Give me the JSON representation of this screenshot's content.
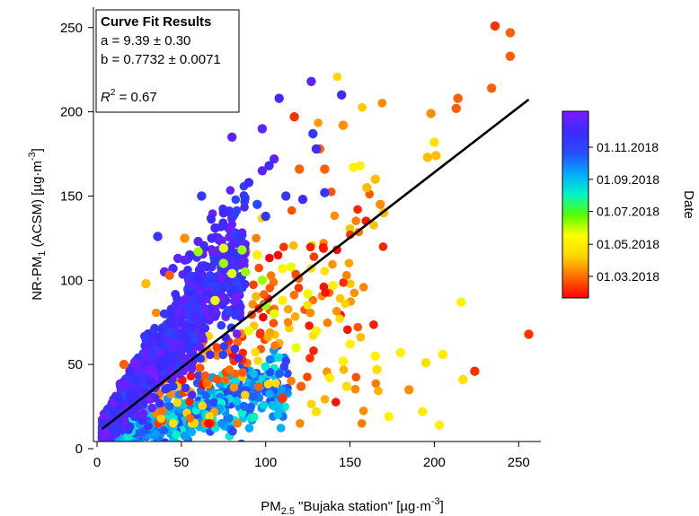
{
  "chart_data": {
    "type": "scatter",
    "xlabel": {
      "pre": "PM",
      "sub": "2.5",
      "mid": " \"Bujaka station\" [µg·m",
      "sup": "-3",
      "post": "]"
    },
    "ylabel": {
      "pre": "NR-PM",
      "sub": "1",
      "mid": " (ACSM) [µg·m",
      "sup": "-3",
      "post": "]"
    },
    "xlim": [
      0,
      260
    ],
    "ylim": [
      0,
      260
    ],
    "xticks": [
      0,
      50,
      100,
      150,
      200,
      250
    ],
    "yticks": [
      0,
      50,
      100,
      150,
      200,
      250
    ],
    "grid": false,
    "fit": {
      "box_title": "Curve Fit Results",
      "a_text": "a = 9.39 ± 0.30",
      "b_text": "b = 0.7732 ± 0.0071",
      "r2_label": "R",
      "r2_sup": "2",
      "r2_value": " = 0.67",
      "a": 9.39,
      "b": 0.7732,
      "line_x": [
        3,
        256
      ]
    },
    "colorbar": {
      "label": "Date",
      "ticks": [
        "01.03.2018",
        "01.05.2018",
        "01.07.2018",
        "01.09.2018",
        "01.11.2018"
      ],
      "tick_positions": [
        0.115,
        0.335,
        0.56,
        0.78,
        1.0
      ],
      "colors": [
        "#ff0000",
        "#ff6a00",
        "#ffd400",
        "#ffff00",
        "#55ff00",
        "#00f5c8",
        "#00aaff",
        "#2a4bff",
        "#3a2bff",
        "#7a1cff"
      ]
    },
    "cloud_seed": 20180101,
    "series": [
      {
        "x": [
          236,
          245,
          245,
          234,
          256,
          214,
          213,
          198,
          201,
          196,
          200,
          195,
          216,
          224,
          203,
          217,
          173,
          166,
          180,
          205,
          193,
          185,
          165,
          146
        ],
        "y": [
          251,
          247,
          233,
          214,
          68,
          208,
          202,
          199,
          174,
          173,
          182,
          51,
          87,
          46,
          14,
          41,
          19,
          47,
          57,
          56,
          22,
          35,
          55,
          52
        ],
        "c": [
          0.05,
          0.1,
          0.1,
          0.1,
          0.05,
          0.1,
          0.1,
          0.15,
          0.2,
          0.2,
          0.25,
          0.25,
          0.3,
          0.05,
          0.3,
          0.25,
          0.3,
          0.25,
          0.3,
          0.28,
          0.28,
          0.15,
          0.3,
          0.3
        ]
      },
      {
        "x": [
          127,
          108,
          145,
          117,
          146,
          132,
          156,
          152,
          165,
          160,
          168,
          170,
          135,
          122,
          130,
          98,
          128,
          135,
          120
        ],
        "y": [
          218,
          208,
          210,
          197,
          192,
          178,
          168,
          167,
          160,
          155,
          145,
          140,
          152,
          148,
          178,
          190,
          187,
          166,
          166
        ],
        "c": [
          0.95,
          0.9,
          0.9,
          0.05,
          0.15,
          0.1,
          0.3,
          0.3,
          0.2,
          0.2,
          0.15,
          0.2,
          0.85,
          0.9,
          0.9,
          0.95,
          0.85,
          0.1,
          0.1
        ]
      },
      {
        "x": [
          80,
          105,
          102,
          98,
          90,
          95,
          112,
          100,
          75,
          62,
          70,
          68,
          85,
          60,
          55,
          52,
          65,
          48,
          45,
          40
        ],
        "y": [
          185,
          172,
          168,
          165,
          158,
          145,
          150,
          138,
          140,
          150,
          131,
          125,
          125,
          123,
          115,
          112,
          108,
          113,
          107,
          105
        ],
        "c": [
          0.95,
          0.95,
          0.9,
          0.95,
          0.9,
          0.8,
          0.85,
          0.85,
          0.9,
          0.85,
          0.9,
          0.9,
          0.85,
          0.95,
          0.9,
          0.95,
          0.9,
          0.95,
          0.9,
          0.95
        ]
      },
      {
        "x": [
          115,
          95,
          98,
          110,
          125,
          75,
          88,
          130,
          118,
          60,
          75,
          80,
          86,
          100,
          110,
          105,
          140,
          150,
          90,
          70
        ],
        "y": [
          108,
          115,
          100,
          107,
          92,
          119,
          105,
          70,
          60,
          117,
          110,
          104,
          118,
          85,
          88,
          80,
          97,
          62,
          70,
          88
        ],
        "c": [
          0.35,
          0.3,
          0.4,
          0.3,
          0.35,
          0.35,
          0.4,
          0.3,
          0.35,
          0.4,
          0.4,
          0.35,
          0.4,
          0.4,
          0.3,
          0.35,
          0.3,
          0.3,
          0.35,
          0.35
        ]
      },
      {
        "x": [
          36,
          52,
          110,
          121,
          130,
          138,
          148,
          16,
          43,
          29
        ],
        "y": [
          126,
          125,
          30,
          37,
          22,
          42,
          37,
          50,
          103,
          98
        ],
        "c": [
          0.85,
          0.15,
          0.05,
          0.1,
          0.25,
          0.3,
          0.25,
          0.1,
          0.1,
          0.2
        ]
      }
    ]
  }
}
